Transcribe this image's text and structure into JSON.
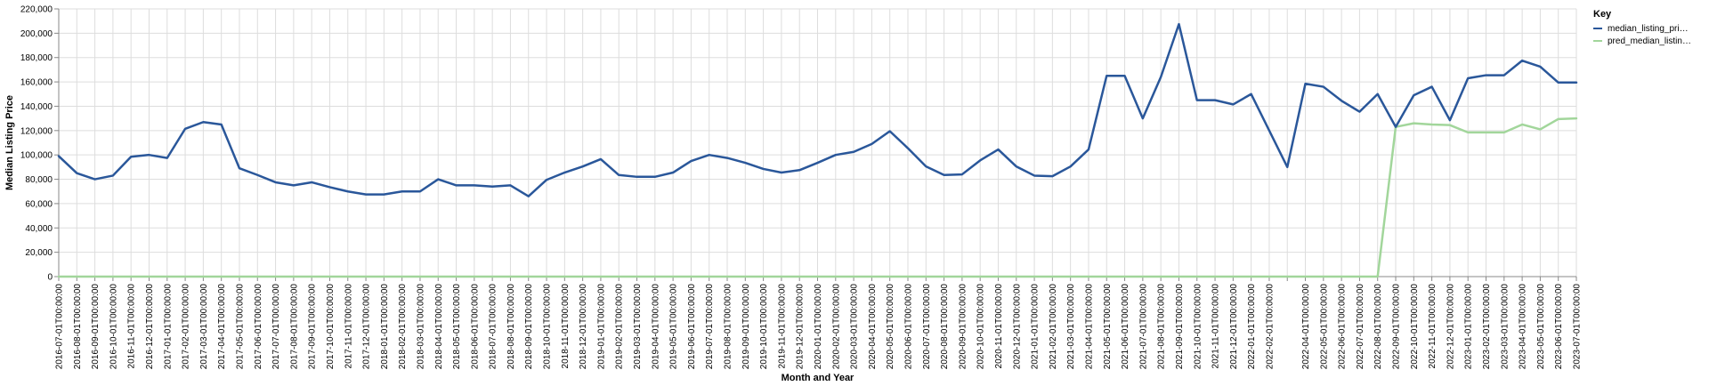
{
  "chart_data": {
    "type": "line",
    "xlabel": "Month and Year",
    "ylabel": "Median Listing Price",
    "ylim": [
      0,
      220000
    ],
    "yticks": [
      0,
      20000,
      40000,
      60000,
      80000,
      100000,
      120000,
      140000,
      160000,
      180000,
      200000,
      220000
    ],
    "ytick_labels": [
      "0",
      "20,000",
      "40,000",
      "60,000",
      "80,000",
      "100,000",
      "120,000",
      "140,000",
      "160,000",
      "180,000",
      "200,000",
      "220,000"
    ],
    "grid": true,
    "legend_placement": "top-right",
    "legend_title": "Key",
    "x": [
      "2016-07-01T00:00:00",
      "2016-08-01T00:00:00",
      "2016-09-01T00:00:00",
      "2016-10-01T00:00:00",
      "2016-11-01T00:00:00",
      "2016-12-01T00:00:00",
      "2017-01-01T00:00:00",
      "2017-02-01T00:00:00",
      "2017-03-01T00:00:00",
      "2017-04-01T00:00:00",
      "2017-05-01T00:00:00",
      "2017-06-01T00:00:00",
      "2017-07-01T00:00:00",
      "2017-08-01T00:00:00",
      "2017-09-01T00:00:00",
      "2017-10-01T00:00:00",
      "2017-11-01T00:00:00",
      "2017-12-01T00:00:00",
      "2018-01-01T00:00:00",
      "2018-02-01T00:00:00",
      "2018-03-01T00:00:00",
      "2018-04-01T00:00:00",
      "2018-05-01T00:00:00",
      "2018-06-01T00:00:00",
      "2018-07-01T00:00:00",
      "2018-08-01T00:00:00",
      "2018-09-01T00:00:00",
      "2018-10-01T00:00:00",
      "2018-11-01T00:00:00",
      "2018-12-01T00:00:00",
      "2019-01-01T00:00:00",
      "2019-02-01T00:00:00",
      "2019-03-01T00:00:00",
      "2019-04-01T00:00:00",
      "2019-05-01T00:00:00",
      "2019-06-01T00:00:00",
      "2019-07-01T00:00:00",
      "2019-08-01T00:00:00",
      "2019-09-01T00:00:00",
      "2019-10-01T00:00:00",
      "2019-11-01T00:00:00",
      "2019-12-01T00:00:00",
      "2020-01-01T00:00:00",
      "2020-02-01T00:00:00",
      "2020-03-01T00:00:00",
      "2020-04-01T00:00:00",
      "2020-05-01T00:00:00",
      "2020-06-01T00:00:00",
      "2020-07-01T00:00:00",
      "2020-08-01T00:00:00",
      "2020-09-01T00:00:00",
      "2020-10-01T00:00:00",
      "2020-11-01T00:00:00",
      "2020-12-01T00:00:00",
      "2021-01-01T00:00:00",
      "2021-02-01T00:00:00",
      "2021-03-01T00:00:00",
      "2021-04-01T00:00:00",
      "2021-05-01T00:00:00",
      "2021-06-01T00:00:00",
      "2021-07-01T00:00:00",
      "2021-08-01T00:00:00",
      "2021-09-01T00:00:00",
      "2021-10-01T00:00:00",
      "2021-11-01T00:00:00",
      "2021-12-01T00:00:00",
      "2022-01-01T00:00:00",
      "2022-02-01T00:00:00",
      "2022-03-01T00:00:00",
      "2022-04-01T00:00:00",
      "2022-05-01T00:00:00",
      "2022-06-01T00:00:00",
      "2022-07-01T00:00:00",
      "2022-08-01T00:00:00",
      "2022-09-01T00:00:00",
      "2022-10-01T00:00:00",
      "2022-11-01T00:00:00",
      "2022-12-01T00:00:00",
      "2023-01-01T00:00:00",
      "2023-02-01T00:00:00",
      "2023-03-01T00:00:00",
      "2023-04-01T00:00:00",
      "2023-05-01T00:00:00",
      "2023-06-01T00:00:00",
      "2023-07-01T00:00:00"
    ],
    "x_labeled": [
      "2016-07-01T00:00:00",
      "2016-08-01T00:00:00",
      "2016-09-01T00:00:00",
      "2016-10-01T00:00:00",
      "2016-11-01T00:00:00",
      "2016-12-01T00:00:00",
      "2017-01-01T00:00:00",
      "2017-02-01T00:00:00",
      "2017-03-01T00:00:00",
      "2017-04-01T00:00:00",
      "2017-05-01T00:00:00",
      "2017-06-01T00:00:00",
      "2017-07-01T00:00:00",
      "2017-08-01T00:00:00",
      "2017-09-01T00:00:00",
      "2017-10-01T00:00:00",
      "2017-11-01T00:00:00",
      "2017-12-01T00:00:00",
      "2018-01-01T00:00:00",
      "2018-02-01T00:00:00",
      "2018-03-01T00:00:00",
      "2018-04-01T00:00:00",
      "2018-05-01T00:00:00",
      "2018-06-01T00:00:00",
      "2018-07-01T00:00:00",
      "2018-08-01T00:00:00",
      "2018-09-01T00:00:00",
      "2018-10-01T00:00:00",
      "2018-11-01T00:00:00",
      "2018-12-01T00:00:00",
      "2019-01-01T00:00:00",
      "2019-02-01T00:00:00",
      "2019-03-01T00:00:00",
      "2019-04-01T00:00:00",
      "2019-05-01T00:00:00",
      "2019-06-01T00:00:00",
      "2019-07-01T00:00:00",
      "2019-08-01T00:00:00",
      "2019-09-01T00:00:00",
      "2019-10-01T00:00:00",
      "2019-11-01T00:00:00",
      "2019-12-01T00:00:00",
      "2020-01-01T00:00:00",
      "2020-02-01T00:00:00",
      "2020-03-01T00:00:00",
      "2020-04-01T00:00:00",
      "2020-05-01T00:00:00",
      "2020-06-01T00:00:00",
      "2020-07-01T00:00:00",
      "2020-08-01T00:00:00",
      "2020-09-01T00:00:00",
      "2020-10-01T00:00:00",
      "2020-11-01T00:00:00",
      "2020-12-01T00:00:00",
      "2021-01-01T00:00:00",
      "2021-02-01T00:00:00",
      "2021-03-01T00:00:00",
      "2021-04-01T00:00:00",
      "2021-05-01T00:00:00",
      "2021-06-01T00:00:00",
      "2021-07-01T00:00:00",
      "2021-08-01T00:00:00",
      "2021-09-01T00:00:00",
      "2021-10-01T00:00:00",
      "2021-11-01T00:00:00",
      "2021-12-01T00:00:00",
      "2022-01-01T00:00:00",
      "2022-02-01T00:00:00",
      "2022-04-01T00:00:00",
      "2022-05-01T00:00:00",
      "2022-06-01T00:00:00",
      "2022-07-01T00:00:00",
      "2022-08-01T00:00:00",
      "2022-09-01T00:00:00",
      "2022-10-01T00:00:00",
      "2022-11-01T00:00:00",
      "2022-12-01T00:00:00",
      "2023-01-01T00:00:00",
      "2023-02-01T00:00:00",
      "2023-03-01T00:00:00",
      "2023-04-01T00:00:00",
      "2023-05-01T00:00:00",
      "2023-06-01T00:00:00",
      "2023-07-01T00:00:00"
    ],
    "series": [
      {
        "name": "median_listing_pri…",
        "color": "#2a579a",
        "values": [
          99000,
          85000,
          80000,
          83000,
          98500,
          100000,
          97500,
          121500,
          127000,
          125000,
          89000,
          83500,
          77500,
          75000,
          77500,
          73500,
          70000,
          67500,
          67500,
          70000,
          70000,
          80000,
          75000,
          75000,
          74000,
          75000,
          66000,
          79500,
          85500,
          90500,
          96500,
          83500,
          82000,
          82000,
          85500,
          95000,
          100000,
          97500,
          93500,
          88500,
          85500,
          87500,
          93500,
          100000,
          102500,
          109000,
          119500,
          105500,
          90500,
          83500,
          84000,
          95500,
          104500,
          90500,
          83000,
          82500,
          90500,
          104500,
          165000,
          165000,
          130000,
          164000,
          207500,
          145000,
          145000,
          141500,
          150000,
          120000,
          90000,
          158500,
          156000,
          144500,
          135500,
          150000,
          123000,
          149000,
          156000,
          128500,
          163000,
          165500,
          165500,
          177500,
          172500,
          159500,
          159500
        ]
      },
      {
        "name": "pred_median_listin…",
        "color": "#a2d69b",
        "values": [
          0,
          0,
          0,
          0,
          0,
          0,
          0,
          0,
          0,
          0,
          0,
          0,
          0,
          0,
          0,
          0,
          0,
          0,
          0,
          0,
          0,
          0,
          0,
          0,
          0,
          0,
          0,
          0,
          0,
          0,
          0,
          0,
          0,
          0,
          0,
          0,
          0,
          0,
          0,
          0,
          0,
          0,
          0,
          0,
          0,
          0,
          0,
          0,
          0,
          0,
          0,
          0,
          0,
          0,
          0,
          0,
          0,
          0,
          0,
          0,
          0,
          0,
          0,
          0,
          0,
          0,
          0,
          0,
          0,
          0,
          0,
          0,
          0,
          0,
          123000,
          126000,
          125000,
          124500,
          118500,
          118500,
          118500,
          125000,
          121000,
          129500,
          130000
        ]
      }
    ]
  }
}
